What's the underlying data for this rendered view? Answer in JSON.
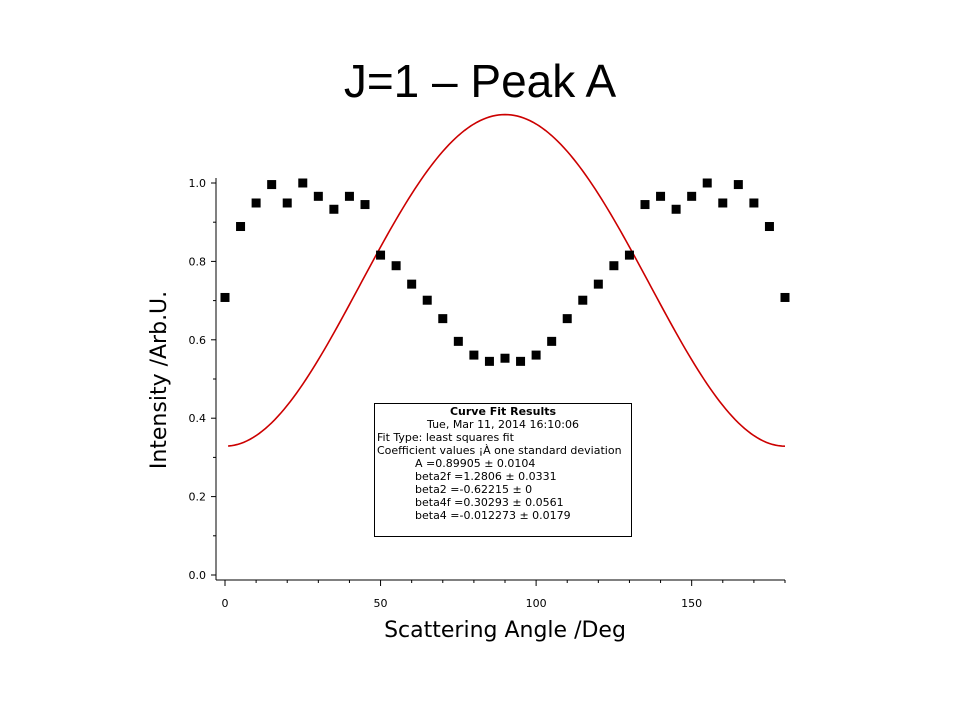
{
  "slide_title": "J=1 – Peak A",
  "chart_data": {
    "type": "scatter",
    "title": "",
    "xlabel": "Scattering Angle /Deg",
    "ylabel": "Intensity /Arb.U.",
    "xlim": [
      0,
      180
    ],
    "ylim": [
      0,
      1.0
    ],
    "xticks": [
      0,
      50,
      100,
      150
    ],
    "yticks": [
      0.0,
      0.2,
      0.4,
      0.6,
      0.8,
      1.0
    ],
    "xtick_labels": [
      "0",
      "50",
      "100",
      "150"
    ],
    "ytick_labels": [
      "0.0",
      "0.2",
      "0.4",
      "0.6",
      "0.8",
      "1.0"
    ],
    "grid": false,
    "series": [
      {
        "kind": "points",
        "marker": "square",
        "color": "#000000",
        "x": [
          0,
          5,
          10,
          15,
          20,
          25,
          30,
          35,
          40,
          45,
          50,
          55,
          60,
          65,
          70,
          75,
          80,
          85,
          90,
          95,
          100,
          105,
          110,
          115,
          120,
          125,
          130,
          135,
          140,
          145,
          150,
          155,
          160,
          165,
          170,
          175,
          180
        ],
        "y": [
          0.708,
          0.889,
          0.949,
          0.996,
          0.949,
          1.0,
          0.966,
          0.933,
          0.966,
          0.945,
          0.816,
          0.789,
          0.742,
          0.701,
          0.654,
          0.596,
          0.561,
          0.545,
          0.553,
          0.545,
          0.561,
          0.596,
          0.654,
          0.701,
          0.742,
          0.789,
          0.816,
          0.945,
          0.966,
          0.933,
          0.966,
          1.0,
          0.949,
          0.996,
          0.949,
          0.889,
          0.708
        ]
      },
      {
        "kind": "fit",
        "color": "#cc0000",
        "model": "A*(1 + beta2*P2(cos x) + beta4*P4(cos x))",
        "params": {
          "A": 0.89905,
          "beta2": -0.62215,
          "beta4": -0.012273
        },
        "x_range": [
          1,
          180
        ]
      }
    ],
    "annotation": {
      "title": "Curve Fit Results",
      "timestamp": "Tue, Mar 11, 2014 16:10:06",
      "fit_type": "Fit Type: least squares fit",
      "coef_header": "Coefficient values ¡À one standard deviation",
      "coefficients": [
        "A      =0.89905 ± 0.0104",
        "beta2f =1.2806 ± 0.0331",
        "beta2  =-0.62215 ± 0",
        "beta4f =0.30293 ± 0.0561",
        "beta4  =-0.012273 ± 0.0179"
      ]
    }
  }
}
